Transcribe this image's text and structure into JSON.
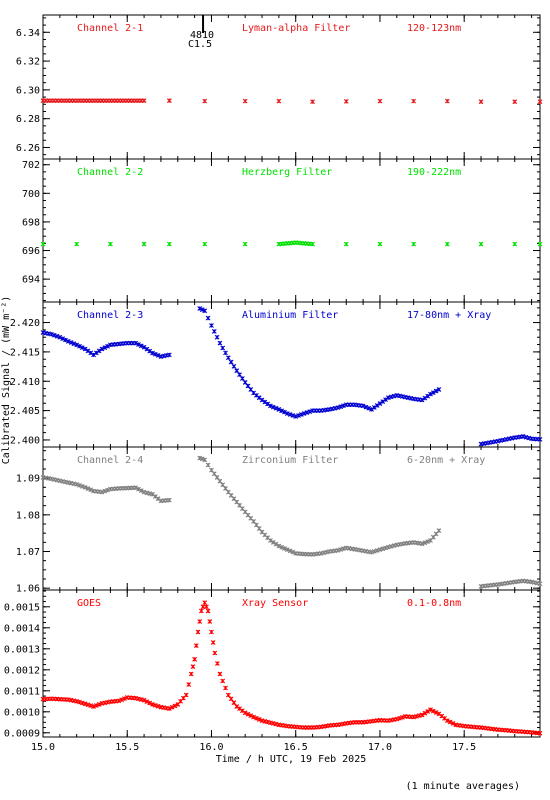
{
  "chart_data": {
    "type": "scatter",
    "xlabel": "Time / h UTC, 19 Feb 2025",
    "ylabel": "Calibrated Signal / (mW m⁻²)",
    "xlim": [
      15.0,
      17.95
    ],
    "xticks": [
      "15.0",
      "15.5",
      "16.0",
      "16.5",
      "17.0",
      "17.5"
    ],
    "xtick_values": [
      15.0,
      15.5,
      16.0,
      16.5,
      17.0,
      17.5
    ],
    "flare_marker": {
      "x": 15.95,
      "labels": [
        "4810",
        "C1.5"
      ]
    },
    "footnote": "(1 minute averages)",
    "panels": [
      {
        "name": "Channel 2-1",
        "filter": "Lyman-alpha Filter",
        "band": "120-123nm",
        "color": "#e41a1c",
        "ylim": [
          6.252,
          6.352
        ],
        "yticks": [
          "6.26",
          "6.28",
          "6.30",
          "6.32",
          "6.34"
        ],
        "ytick_values": [
          6.26,
          6.28,
          6.3,
          6.32,
          6.34
        ],
        "points": [
          [
            15.0,
            6.2925
          ],
          [
            15.1,
            6.2925
          ],
          [
            15.2,
            6.2925
          ],
          [
            15.3,
            6.2925
          ],
          [
            15.4,
            6.2925
          ],
          [
            15.5,
            6.2925
          ],
          [
            15.6,
            6.2925
          ],
          [
            15.75,
            6.2925
          ],
          [
            15.96,
            6.2922
          ],
          [
            16.2,
            6.2922
          ],
          [
            16.4,
            6.2922
          ],
          [
            16.6,
            6.2918
          ],
          [
            16.8,
            6.292
          ],
          [
            17.0,
            6.2922
          ],
          [
            17.2,
            6.2922
          ],
          [
            17.4,
            6.2922
          ],
          [
            17.6,
            6.2918
          ],
          [
            17.8,
            6.2918
          ],
          [
            17.95,
            6.2918
          ]
        ]
      },
      {
        "name": "Channel 2-2",
        "filter": "Herzberg Filter",
        "band": "190-222nm",
        "color": "#00e000",
        "ylim": [
          692.4,
          702.4
        ],
        "yticks": [
          "694",
          "696",
          "698",
          "700",
          "702"
        ],
        "ytick_values": [
          694,
          696,
          698,
          700,
          702
        ],
        "points": [
          [
            15.0,
            696.45
          ],
          [
            15.2,
            696.45
          ],
          [
            15.4,
            696.45
          ],
          [
            15.6,
            696.45
          ],
          [
            15.75,
            696.45
          ],
          [
            15.96,
            696.45
          ],
          [
            16.2,
            696.45
          ],
          [
            16.4,
            696.45
          ],
          [
            16.5,
            696.55
          ],
          [
            16.6,
            696.45
          ],
          [
            16.8,
            696.45
          ],
          [
            17.0,
            696.45
          ],
          [
            17.2,
            696.45
          ],
          [
            17.4,
            696.45
          ],
          [
            17.6,
            696.45
          ],
          [
            17.8,
            696.45
          ],
          [
            17.95,
            696.45
          ]
        ]
      },
      {
        "name": "Channel 2-3",
        "filter": "Aluminium Filter",
        "band": "17-80nm + Xray",
        "color": "#0000d0",
        "ylim": [
          2.3988,
          2.4235
        ],
        "yticks": [
          "2.400",
          "2.405",
          "2.410",
          "2.415",
          "2.420"
        ],
        "ytick_values": [
          2.4,
          2.405,
          2.41,
          2.415,
          2.42
        ],
        "points": [
          [
            15.0,
            2.4183
          ],
          [
            15.05,
            2.418
          ],
          [
            15.1,
            2.4175
          ],
          [
            15.15,
            2.4168
          ],
          [
            15.2,
            2.4162
          ],
          [
            15.25,
            2.4155
          ],
          [
            15.3,
            2.4145
          ],
          [
            15.35,
            2.4155
          ],
          [
            15.4,
            2.4162
          ],
          [
            15.5,
            2.4165
          ],
          [
            15.55,
            2.4165
          ],
          [
            15.6,
            2.4158
          ],
          [
            15.65,
            2.4148
          ],
          [
            15.7,
            2.4142
          ],
          [
            15.75,
            2.4145
          ],
          [
            15.93,
            2.4224
          ],
          [
            15.96,
            2.422
          ],
          [
            16.0,
            2.4195
          ],
          [
            16.05,
            2.4165
          ],
          [
            16.1,
            2.414
          ],
          [
            16.15,
            2.4118
          ],
          [
            16.2,
            2.4098
          ],
          [
            16.25,
            2.408
          ],
          [
            16.3,
            2.4068
          ],
          [
            16.35,
            2.4058
          ],
          [
            16.4,
            2.4052
          ],
          [
            16.45,
            2.4045
          ],
          [
            16.5,
            2.404
          ],
          [
            16.55,
            2.4045
          ],
          [
            16.6,
            2.405
          ],
          [
            16.65,
            2.405
          ],
          [
            16.7,
            2.4052
          ],
          [
            16.75,
            2.4055
          ],
          [
            16.8,
            2.406
          ],
          [
            16.85,
            2.406
          ],
          [
            16.9,
            2.4058
          ],
          [
            16.95,
            2.4052
          ],
          [
            17.0,
            2.4062
          ],
          [
            17.05,
            2.4072
          ],
          [
            17.1,
            2.4076
          ],
          [
            17.15,
            2.4073
          ],
          [
            17.2,
            2.407
          ],
          [
            17.25,
            2.4068
          ],
          [
            17.3,
            2.4078
          ],
          [
            17.35,
            2.4086
          ],
          [
            17.6,
            2.3993
          ],
          [
            17.7,
            2.3998
          ],
          [
            17.8,
            2.4004
          ],
          [
            17.85,
            2.4006
          ],
          [
            17.9,
            2.4002
          ],
          [
            17.95,
            2.4001
          ]
        ]
      },
      {
        "name": "Channel 2-4",
        "filter": "Zirconium Filter",
        "band": "6-20nm + Xray",
        "color": "#808080",
        "ylim": [
          1.0595,
          1.0985
        ],
        "yticks": [
          "1.06",
          "1.07",
          "1.08",
          "1.09"
        ],
        "ytick_values": [
          1.06,
          1.07,
          1.08,
          1.09
        ],
        "points": [
          [
            15.0,
            1.0902
          ],
          [
            15.05,
            1.0898
          ],
          [
            15.1,
            1.0893
          ],
          [
            15.15,
            1.0888
          ],
          [
            15.2,
            1.0883
          ],
          [
            15.25,
            1.0875
          ],
          [
            15.3,
            1.0865
          ],
          [
            15.35,
            1.0862
          ],
          [
            15.4,
            1.087
          ],
          [
            15.45,
            1.0872
          ],
          [
            15.5,
            1.0873
          ],
          [
            15.55,
            1.0874
          ],
          [
            15.6,
            1.0862
          ],
          [
            15.65,
            1.0856
          ],
          [
            15.7,
            1.0838
          ],
          [
            15.75,
            1.084
          ],
          [
            15.93,
            1.0955
          ],
          [
            15.96,
            1.095
          ],
          [
            16.0,
            1.0922
          ],
          [
            16.05,
            1.0892
          ],
          [
            16.1,
            1.0862
          ],
          [
            16.15,
            1.0835
          ],
          [
            16.2,
            1.0808
          ],
          [
            16.25,
            1.0782
          ],
          [
            16.3,
            1.0753
          ],
          [
            16.35,
            1.073
          ],
          [
            16.4,
            1.0715
          ],
          [
            16.45,
            1.0705
          ],
          [
            16.5,
            1.0695
          ],
          [
            16.55,
            1.0693
          ],
          [
            16.6,
            1.0692
          ],
          [
            16.65,
            1.0695
          ],
          [
            16.7,
            1.07
          ],
          [
            16.75,
            1.0703
          ],
          [
            16.8,
            1.071
          ],
          [
            16.85,
            1.0706
          ],
          [
            16.9,
            1.0702
          ],
          [
            16.95,
            1.0698
          ],
          [
            17.0,
            1.0705
          ],
          [
            17.05,
            1.0712
          ],
          [
            17.1,
            1.0718
          ],
          [
            17.15,
            1.0722
          ],
          [
            17.2,
            1.0725
          ],
          [
            17.25,
            1.0721
          ],
          [
            17.3,
            1.073
          ],
          [
            17.35,
            1.0757
          ],
          [
            17.6,
            1.0605
          ],
          [
            17.7,
            1.061
          ],
          [
            17.8,
            1.0617
          ],
          [
            17.85,
            1.062
          ],
          [
            17.9,
            1.0617
          ],
          [
            17.95,
            1.0612
          ]
        ]
      },
      {
        "name": "GOES",
        "filter": "Xray Sensor",
        "band": "0.1-0.8nm",
        "color": "#ff0000",
        "ylim": [
          0.00088,
          0.00158
        ],
        "yticks": [
          "0.0009",
          "0.0010",
          "0.0011",
          "0.0012",
          "0.0013",
          "0.0014",
          "0.0015"
        ],
        "ytick_values": [
          0.0009,
          0.001,
          0.0011,
          0.0012,
          0.0013,
          0.0014,
          0.0015
        ],
        "points": [
          [
            15.0,
            0.00106
          ],
          [
            15.05,
            0.001062
          ],
          [
            15.1,
            0.00106
          ],
          [
            15.15,
            0.001058
          ],
          [
            15.2,
            0.00105
          ],
          [
            15.25,
            0.001038
          ],
          [
            15.3,
            0.001025
          ],
          [
            15.35,
            0.00104
          ],
          [
            15.4,
            0.001048
          ],
          [
            15.45,
            0.001052
          ],
          [
            15.5,
            0.001068
          ],
          [
            15.55,
            0.001065
          ],
          [
            15.6,
            0.001055
          ],
          [
            15.65,
            0.001035
          ],
          [
            15.7,
            0.001022
          ],
          [
            15.75,
            0.001015
          ],
          [
            15.8,
            0.001035
          ],
          [
            15.85,
            0.00108
          ],
          [
            15.88,
            0.00118
          ],
          [
            15.9,
            0.00125
          ],
          [
            15.92,
            0.00138
          ],
          [
            15.94,
            0.00148
          ],
          [
            15.96,
            0.00152
          ],
          [
            15.98,
            0.00148
          ],
          [
            16.0,
            0.00138
          ],
          [
            16.02,
            0.00128
          ],
          [
            16.05,
            0.00118
          ],
          [
            16.1,
            0.00108
          ],
          [
            16.15,
            0.001025
          ],
          [
            16.2,
            0.000995
          ],
          [
            16.25,
            0.000975
          ],
          [
            16.3,
            0.000958
          ],
          [
            16.35,
            0.000948
          ],
          [
            16.4,
            0.000938
          ],
          [
            16.45,
            0.000932
          ],
          [
            16.5,
            0.000928
          ],
          [
            16.55,
            0.000925
          ],
          [
            16.6,
            0.000925
          ],
          [
            16.65,
            0.000928
          ],
          [
            16.7,
            0.000935
          ],
          [
            16.75,
            0.000938
          ],
          [
            16.8,
            0.000945
          ],
          [
            16.85,
            0.00095
          ],
          [
            16.9,
            0.00095
          ],
          [
            16.95,
            0.000955
          ],
          [
            17.0,
            0.00096
          ],
          [
            17.05,
            0.000958
          ],
          [
            17.1,
            0.000965
          ],
          [
            17.15,
            0.000978
          ],
          [
            17.2,
            0.000975
          ],
          [
            17.25,
            0.000985
          ],
          [
            17.3,
            0.00101
          ],
          [
            17.35,
            0.00099
          ],
          [
            17.4,
            0.000958
          ],
          [
            17.45,
            0.000938
          ],
          [
            17.5,
            0.000932
          ],
          [
            17.55,
            0.000928
          ],
          [
            17.6,
            0.000925
          ],
          [
            17.65,
            0.00092
          ],
          [
            17.7,
            0.000915
          ],
          [
            17.75,
            0.000912
          ],
          [
            17.8,
            0.000908
          ],
          [
            17.85,
            0.000905
          ],
          [
            17.9,
            0.000902
          ],
          [
            17.95,
            0.000898
          ]
        ]
      }
    ]
  }
}
